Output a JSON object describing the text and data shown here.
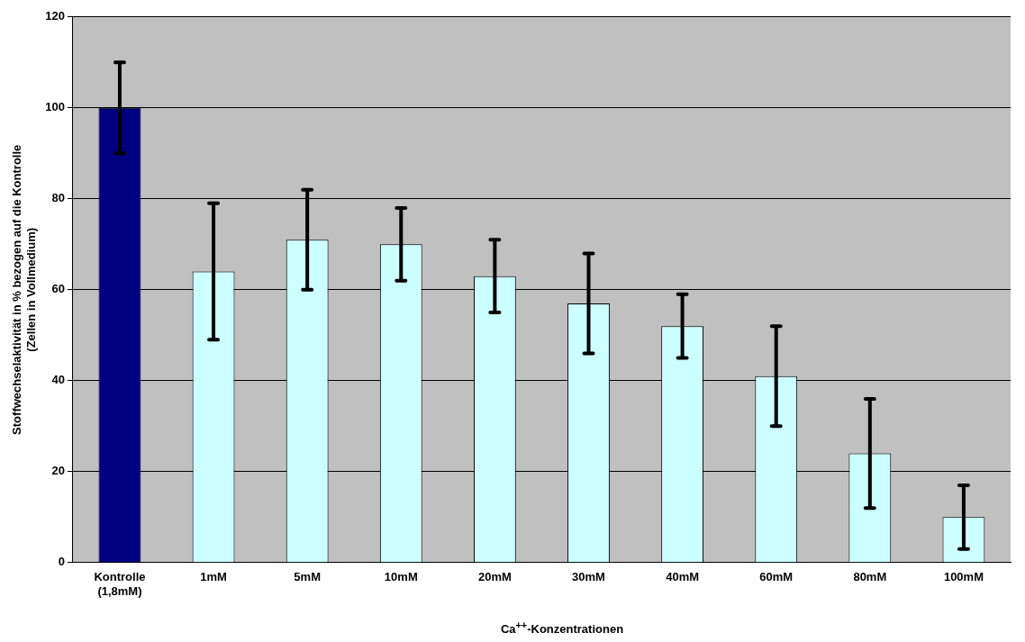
{
  "chart_data": {
    "type": "bar",
    "xlabel": "Ca$^{++}$-Konzentrationen",
    "ylabel": "Stoffwechselaktivität in % bezogen auf die Kontrolle (Zellen in Vollmedium)",
    "categories": [
      "Kontrolle (1,8mM)",
      "1mM",
      "5mM",
      "10mM",
      "20mM",
      "30mM",
      "40mM",
      "60mM",
      "80mM",
      "100mM"
    ],
    "values": [
      100,
      64,
      71,
      70,
      63,
      57,
      52,
      41,
      24,
      10
    ],
    "errors": [
      10,
      15,
      11,
      8,
      8,
      11,
      7,
      11,
      12,
      7
    ],
    "colors": [
      "#000080",
      "#ccffff",
      "#ccffff",
      "#ccffff",
      "#ccffff",
      "#ccffff",
      "#ccffff",
      "#ccffff",
      "#ccffff",
      "#ccffff"
    ],
    "ylim": [
      0,
      120
    ],
    "yticks": [
      0,
      20,
      40,
      60,
      80,
      100,
      120
    ],
    "grid": "y"
  }
}
